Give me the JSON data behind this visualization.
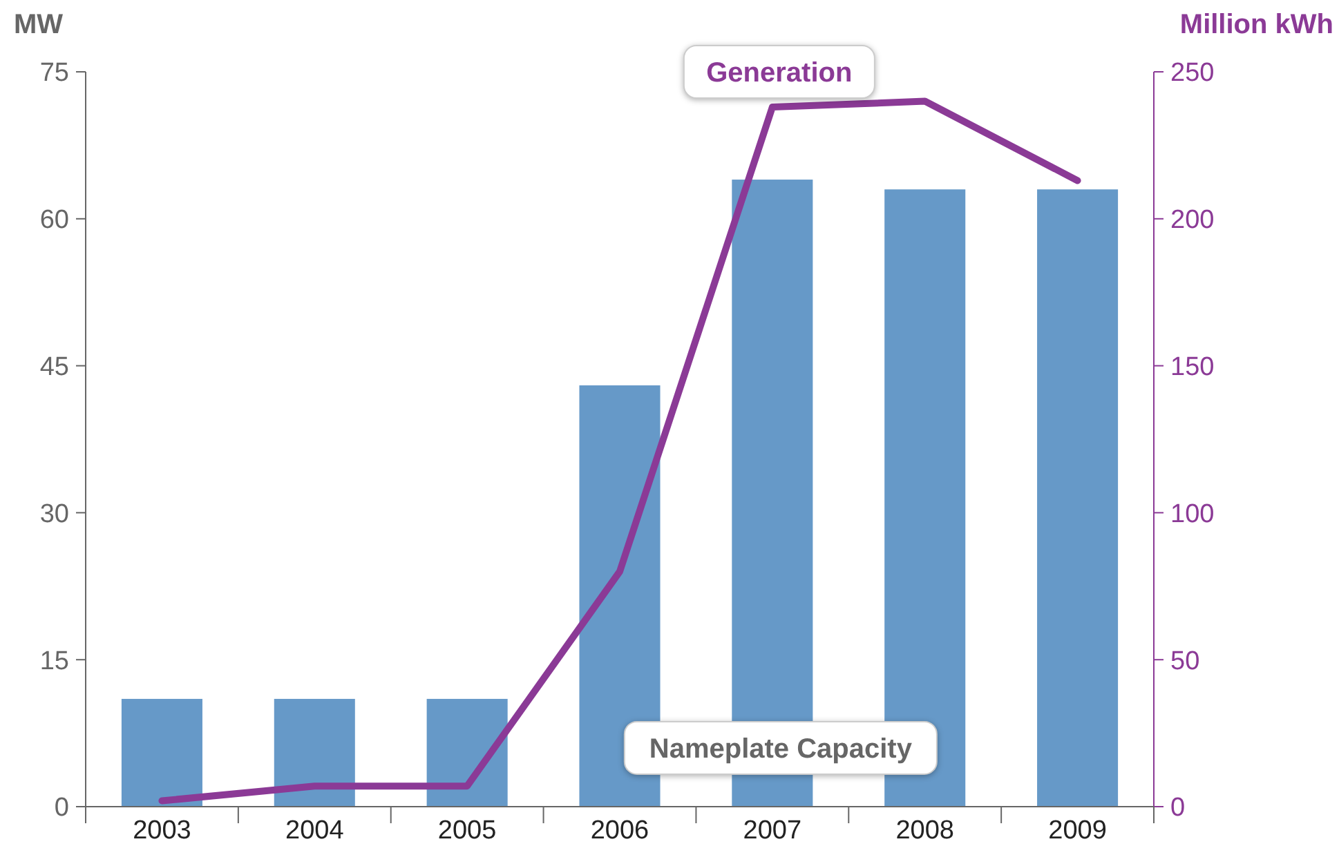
{
  "chart_data": {
    "type": "bar",
    "ylabel": "MW",
    "y2label": "Million kWh",
    "categories": [
      "2003",
      "2004",
      "2005",
      "2006",
      "2007",
      "2008",
      "2009"
    ],
    "series": [
      {
        "name": "Nameplate Capacity",
        "color": "#6699c8",
        "values": [
          11,
          11,
          11,
          43,
          64,
          63,
          63
        ]
      },
      {
        "name": "Generation",
        "type": "line",
        "axis": "y2",
        "color": "#8b3a96",
        "values": [
          2,
          7,
          7,
          80,
          238,
          240,
          213
        ]
      }
    ],
    "ylim": [
      0,
      75
    ],
    "yticks": [
      0,
      15,
      30,
      45,
      60,
      75
    ],
    "y2lim": [
      0,
      250
    ],
    "y2ticks": [
      0,
      50,
      100,
      150,
      200,
      250
    ],
    "grid": false
  }
}
